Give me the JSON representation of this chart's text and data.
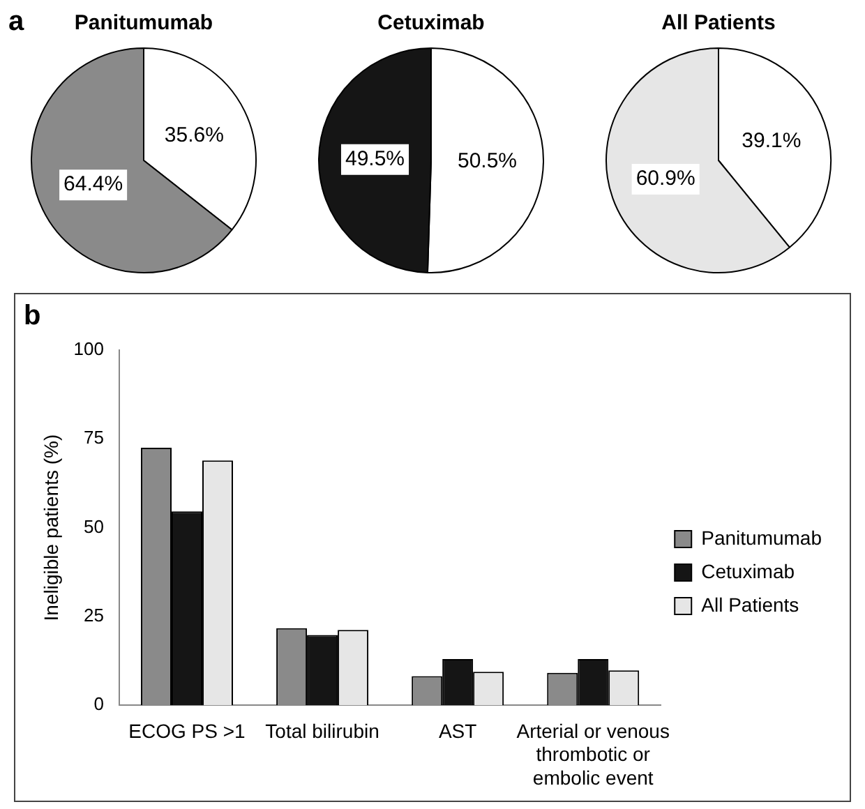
{
  "chart_data": [
    {
      "type": "pie",
      "title": "Panitumumab",
      "annotations": [
        "a"
      ],
      "categories": [
        null,
        null
      ],
      "values": [
        35.6,
        64.4
      ],
      "value_labels": [
        "35.6%",
        "64.4%"
      ],
      "colors": [
        "#ffffff",
        "#8a8a8a"
      ]
    },
    {
      "type": "pie",
      "title": "Cetuximab",
      "categories": [
        null,
        null
      ],
      "values": [
        50.5,
        49.5
      ],
      "value_labels": [
        "50.5%",
        "49.5%"
      ],
      "colors": [
        "#ffffff",
        "#151515"
      ]
    },
    {
      "type": "pie",
      "title": "All Patients",
      "categories": [
        null,
        null
      ],
      "values": [
        39.1,
        60.9
      ],
      "value_labels": [
        "39.1%",
        "60.9%"
      ],
      "colors": [
        "#ffffff",
        "#e6e6e6"
      ]
    },
    {
      "type": "bar",
      "annotations": [
        "b"
      ],
      "ylabel": "Ineligible patients (%)",
      "categories": [
        "ECOG PS >1",
        "Total bilirubin",
        "AST",
        "Arterial or venous thrombotic or embolic event"
      ],
      "ylim": [
        0,
        100
      ],
      "yticks": [
        0,
        25,
        50,
        75,
        100
      ],
      "grid": false,
      "legend": "right",
      "series": [
        {
          "name": "Panitumumab",
          "color": "#8a8a8a",
          "values": [
            72.5,
            21.7,
            8.2,
            9.1
          ]
        },
        {
          "name": "Cetuximab",
          "color": "#151515",
          "values": [
            54.6,
            19.8,
            13.0,
            13.0
          ]
        },
        {
          "name": "All Patients",
          "color": "#e6e6e6",
          "values": [
            68.9,
            21.2,
            9.4,
            9.8
          ]
        }
      ]
    }
  ]
}
